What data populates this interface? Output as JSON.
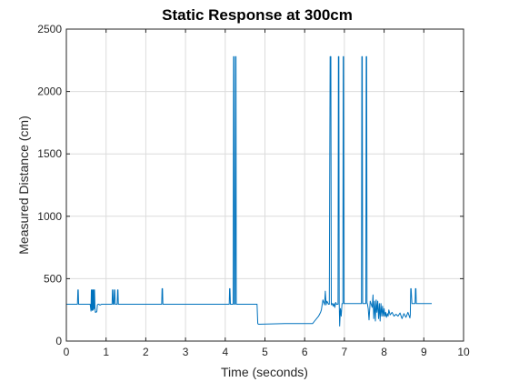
{
  "chart_data": {
    "type": "line",
    "title": "Static Response at 300cm",
    "xlabel": "Time (seconds)",
    "ylabel": "Measured Distance (cm)",
    "xlim": [
      0,
      10
    ],
    "ylim": [
      0,
      2500
    ],
    "xticks": [
      0,
      1,
      2,
      3,
      4,
      5,
      6,
      7,
      8,
      9,
      10
    ],
    "yticks": [
      0,
      500,
      1000,
      1500,
      2000,
      2500
    ],
    "grid": true,
    "legend": "none",
    "line_color": "#0072BD",
    "series": [
      {
        "x": [
          0.0,
          0.28,
          0.29,
          0.3,
          0.31,
          0.6,
          0.62,
          0.63,
          0.64,
          0.65,
          0.66,
          0.67,
          0.68,
          0.69,
          0.7,
          0.71,
          0.72,
          0.73,
          0.74,
          0.75,
          0.76,
          0.77,
          0.78,
          0.8,
          0.82,
          0.84,
          0.86,
          0.88,
          1.15,
          1.16,
          1.17,
          1.18,
          1.2,
          1.21,
          1.22,
          1.23,
          1.28,
          1.29,
          1.3,
          1.31,
          1.32,
          2.4,
          2.41,
          2.42,
          2.43,
          4.1,
          4.11,
          4.12,
          4.13,
          4.2,
          4.21,
          4.22,
          4.23,
          4.25,
          4.26,
          4.27,
          4.28,
          4.8,
          4.82,
          4.84,
          5.5,
          6.2,
          6.25,
          6.3,
          6.35,
          6.4,
          6.42,
          6.44,
          6.46,
          6.5,
          6.52,
          6.54,
          6.56,
          6.6,
          6.62,
          6.64,
          6.66,
          6.67,
          6.68,
          6.69,
          6.7,
          6.72,
          6.74,
          6.76,
          6.78,
          6.8,
          6.84,
          6.85,
          6.86,
          6.87,
          6.88,
          6.9,
          6.92,
          6.94,
          6.96,
          6.97,
          6.98,
          6.99,
          7.0,
          7.02,
          7.05,
          7.1,
          7.15,
          7.2,
          7.25,
          7.3,
          7.35,
          7.4,
          7.43,
          7.44,
          7.45,
          7.46,
          7.47,
          7.5,
          7.54,
          7.55,
          7.56,
          7.57,
          7.58,
          7.6,
          7.62,
          7.65,
          7.7,
          7.72,
          7.74,
          7.76,
          7.78,
          7.8,
          7.82,
          7.84,
          7.86,
          7.88,
          7.9,
          7.92,
          7.94,
          7.96,
          7.98,
          8.0,
          8.02,
          8.04,
          8.06,
          8.08,
          8.1,
          8.12,
          8.15,
          8.2,
          8.25,
          8.3,
          8.35,
          8.4,
          8.45,
          8.5,
          8.55,
          8.6,
          8.65,
          8.66,
          8.67,
          8.68,
          8.7,
          8.72,
          8.78,
          8.79,
          8.8,
          8.81,
          8.85,
          9.0,
          9.2
        ],
        "y": [
          295,
          295,
          410,
          410,
          295,
          295,
          240,
          410,
          250,
          410,
          245,
          410,
          250,
          410,
          260,
          410,
          270,
          230,
          235,
          230,
          235,
          240,
          290,
          295,
          295,
          290,
          290,
          295,
          295,
          410,
          410,
          295,
          295,
          410,
          410,
          295,
          295,
          410,
          410,
          295,
          295,
          295,
          420,
          420,
          295,
          295,
          420,
          420,
          295,
          295,
          2280,
          2280,
          295,
          295,
          2280,
          2280,
          295,
          295,
          140,
          135,
          140,
          140,
          160,
          180,
          200,
          230,
          250,
          290,
          330,
          290,
          400,
          290,
          320,
          295,
          295,
          2280,
          2280,
          295,
          290,
          300,
          300,
          280,
          300,
          270,
          310,
          295,
          295,
          2280,
          2280,
          300,
          120,
          260,
          200,
          300,
          300,
          2280,
          2280,
          300,
          300,
          300,
          300,
          300,
          300,
          300,
          300,
          300,
          300,
          300,
          300,
          2280,
          2280,
          300,
          300,
          300,
          300,
          2280,
          2280,
          300,
          300,
          260,
          170,
          320,
          270,
          370,
          180,
          320,
          160,
          330,
          230,
          320,
          180,
          300,
          160,
          300,
          200,
          280,
          200,
          260,
          200,
          230,
          190,
          220,
          200,
          250,
          210,
          230,
          200,
          215,
          200,
          225,
          180,
          220,
          190,
          230,
          185,
          210,
          420,
          420,
          300,
          300,
          300,
          420,
          420,
          300,
          300,
          300,
          300
        ]
      }
    ]
  }
}
